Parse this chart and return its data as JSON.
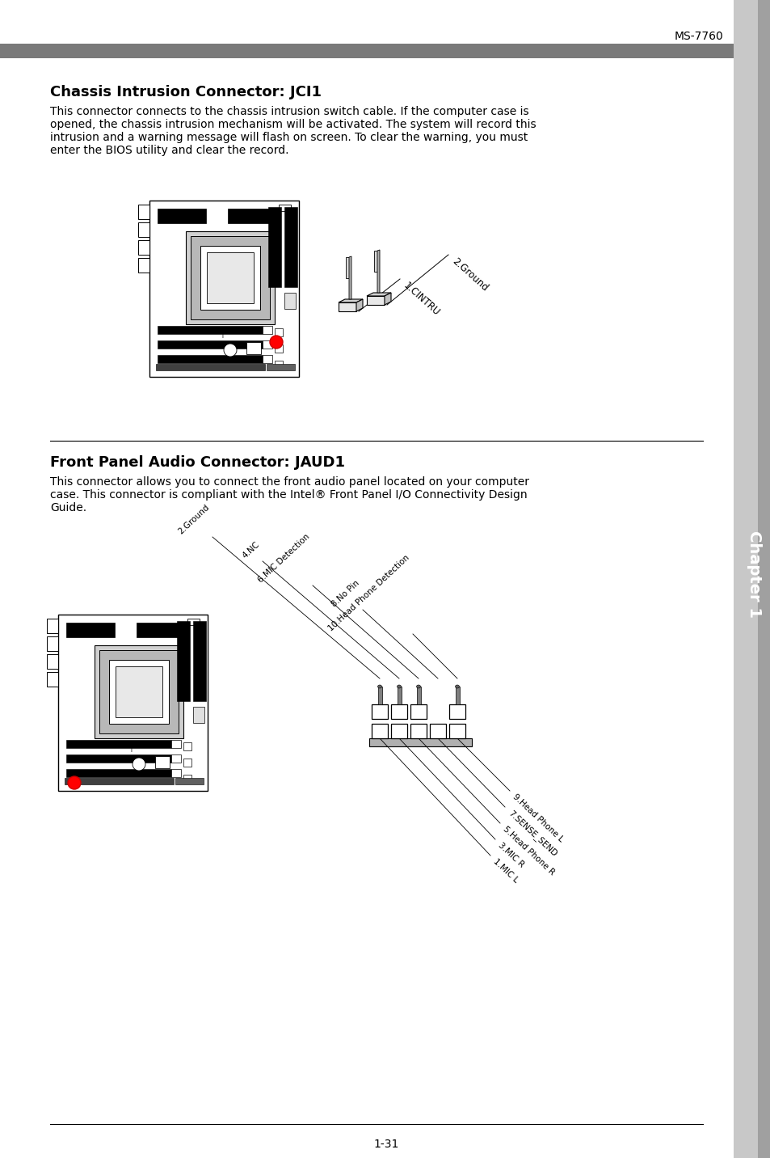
{
  "page_header": "MS-7760",
  "header_bar_color": "#7a7a7a",
  "section1_title": "Chassis Intrusion Connector: JCI1",
  "section1_body_lines": [
    "This connector connects to the chassis intrusion switch cable. If the computer case is",
    "opened, the chassis intrusion mechanism will be activated. The system will record this",
    "intrusion and a warning message will flash on screen. To clear the warning, you must",
    "enter the BIOS utility and clear the record."
  ],
  "jci1_labels": [
    "2.Ground",
    "1.CINTRU"
  ],
  "section2_title": "Front Panel Audio Connector: JAUD1",
  "section2_body_lines": [
    "This connector allows you to connect the front audio panel located on your computer",
    "case. This connector is compliant with the Intel® Front Panel I/O Connectivity Design",
    "Guide."
  ],
  "jaud1_left_labels": [
    "10.Head Phone Detection",
    "8.No Pin",
    "6.MIC Detection",
    "4.NC",
    "2.Ground"
  ],
  "jaud1_right_labels": [
    "9.Head Phone L",
    "7.SENSE_SEND",
    "5.Head Phone R",
    "3.MIC R",
    "1.MIC L"
  ],
  "divider_color": "#000000",
  "text_color": "#000000",
  "background_color": "#ffffff",
  "title_fontsize": 13,
  "body_fontsize": 10,
  "page_number": "1-31",
  "chapter_label": "Chapter 1",
  "sidebar_color": "#c8c8c8",
  "sidebar_dark_color": "#a0a0a0"
}
